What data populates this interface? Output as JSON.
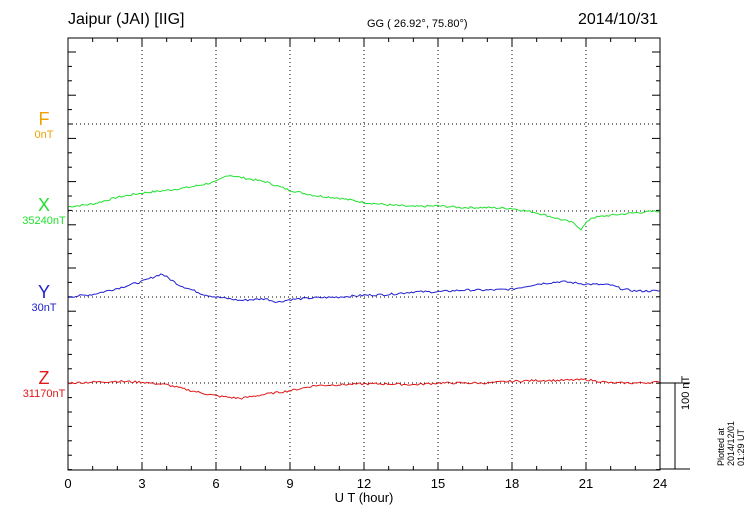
{
  "header": {
    "station": "Jaipur (JAI)  [IIG]",
    "coords": "GG ( 26.92°,  75.80°)",
    "date": "2014/10/31"
  },
  "plotted_note": "Plotted at 2014/12/01 01:29 UT",
  "chart_data": {
    "type": "line",
    "xlabel": "U T (hour)",
    "xlim": [
      0,
      24
    ],
    "x_ticks": [
      0,
      3,
      6,
      9,
      12,
      15,
      18,
      21,
      24
    ],
    "x_tick_labels": [
      "0",
      "3",
      "6",
      "9",
      "12",
      "15",
      "18",
      "21",
      "24"
    ],
    "scale_bar": {
      "label": "100 nT",
      "value_nT": 100
    },
    "channels": [
      {
        "name": "F",
        "baseline": "0nT",
        "color": "#f0a000",
        "points": []
      },
      {
        "name": "X",
        "baseline": "35240nT",
        "color": "#22e030",
        "points": [
          [
            0,
            5
          ],
          [
            1,
            8
          ],
          [
            2,
            16
          ],
          [
            3,
            21
          ],
          [
            4,
            24
          ],
          [
            5,
            28
          ],
          [
            6,
            34
          ],
          [
            6.5,
            42
          ],
          [
            7,
            39
          ],
          [
            8,
            34
          ],
          [
            9,
            24
          ],
          [
            10,
            18
          ],
          [
            11,
            15
          ],
          [
            12,
            10
          ],
          [
            13,
            7
          ],
          [
            14,
            5
          ],
          [
            15,
            6
          ],
          [
            16,
            4
          ],
          [
            17,
            4
          ],
          [
            18,
            3
          ],
          [
            19,
            -2
          ],
          [
            20,
            -10
          ],
          [
            20.5,
            -14
          ],
          [
            20.8,
            -21
          ],
          [
            21.2,
            -8
          ],
          [
            22,
            -5
          ],
          [
            23,
            -2
          ],
          [
            24,
            0
          ]
        ]
      },
      {
        "name": "Y",
        "baseline": "30nT",
        "color": "#2020d0",
        "points": [
          [
            0,
            0
          ],
          [
            1,
            3
          ],
          [
            2,
            10
          ],
          [
            3,
            18
          ],
          [
            3.8,
            27
          ],
          [
            4.5,
            14
          ],
          [
            5.5,
            3
          ],
          [
            6,
            0
          ],
          [
            7,
            -4
          ],
          [
            8,
            -2
          ],
          [
            8.5,
            -6
          ],
          [
            9,
            -3
          ],
          [
            10,
            -1
          ],
          [
            11,
            0
          ],
          [
            12,
            2
          ],
          [
            13,
            3
          ],
          [
            14,
            6
          ],
          [
            15,
            6
          ],
          [
            16,
            8
          ],
          [
            17,
            8
          ],
          [
            18,
            9
          ],
          [
            19,
            15
          ],
          [
            20,
            18
          ],
          [
            21,
            15
          ],
          [
            22,
            14
          ],
          [
            22.5,
            9
          ],
          [
            23,
            7
          ],
          [
            24,
            7
          ]
        ]
      },
      {
        "name": "Z",
        "baseline": "31170nT",
        "color": "#e01818",
        "points": [
          [
            0,
            0
          ],
          [
            1,
            1
          ],
          [
            2,
            2
          ],
          [
            3,
            1
          ],
          [
            4,
            -2
          ],
          [
            5,
            -9
          ],
          [
            6,
            -15
          ],
          [
            7,
            -18
          ],
          [
            8,
            -13
          ],
          [
            9,
            -9
          ],
          [
            10,
            -3
          ],
          [
            11,
            -2
          ],
          [
            12,
            -1
          ],
          [
            13,
            -1
          ],
          [
            14,
            -2
          ],
          [
            15,
            0
          ],
          [
            16,
            0
          ],
          [
            17,
            0
          ],
          [
            18,
            2
          ],
          [
            19,
            3
          ],
          [
            20,
            3
          ],
          [
            21,
            4
          ],
          [
            22,
            0
          ],
          [
            23,
            0
          ],
          [
            24,
            1
          ]
        ]
      }
    ]
  }
}
